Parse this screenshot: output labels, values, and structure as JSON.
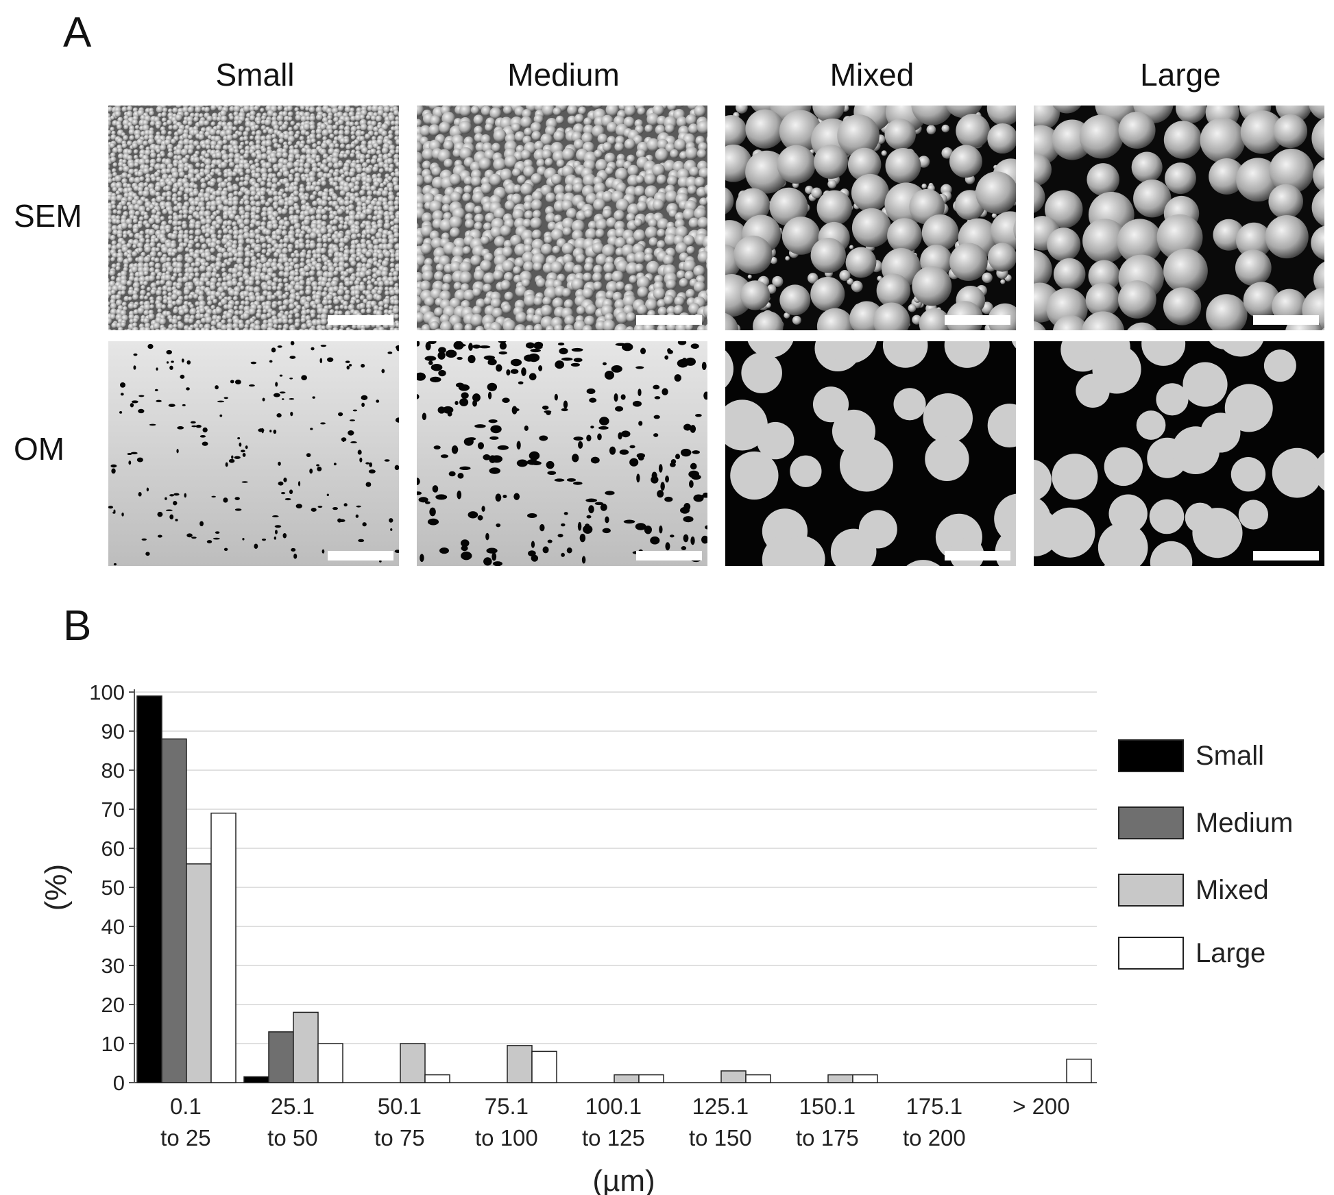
{
  "panel_a": {
    "label": "A",
    "columns": [
      "Small",
      "Medium",
      "Mixed",
      "Large"
    ],
    "rows": [
      "SEM",
      "OM"
    ]
  },
  "panel_b": {
    "label": "B"
  },
  "chart_data": {
    "type": "bar",
    "categories": [
      [
        "0.1",
        "to 25"
      ],
      [
        "25.1",
        "to 50"
      ],
      [
        "50.1",
        "to 75"
      ],
      [
        "75.1",
        "to 100"
      ],
      [
        "100.1",
        "to 125"
      ],
      [
        "125.1",
        "to 150"
      ],
      [
        "150.1",
        "to 175"
      ],
      [
        "175.1",
        "to 200"
      ],
      [
        "> 200"
      ]
    ],
    "series": [
      {
        "name": "Small",
        "color": "#000000",
        "values": [
          99,
          1.5,
          0,
          0,
          0,
          0,
          0,
          0,
          0
        ]
      },
      {
        "name": "Medium",
        "color": "#6f6f6f",
        "values": [
          88,
          13,
          0,
          0,
          0,
          0,
          0,
          0,
          0
        ]
      },
      {
        "name": "Mixed",
        "color": "#c8c8c8",
        "values": [
          56,
          18,
          10,
          9.5,
          2,
          3,
          2,
          0,
          0
        ]
      },
      {
        "name": "Large",
        "color": "#ffffff",
        "values": [
          69,
          10,
          2,
          8,
          2,
          2,
          2,
          0,
          6
        ]
      }
    ],
    "xlabel": "(µm)",
    "ylabel": "(%)",
    "ylim": [
      0,
      100
    ],
    "yticks": [
      0,
      10,
      20,
      30,
      40,
      50,
      60,
      70,
      80,
      90,
      100
    ],
    "grid": true,
    "legend": "right"
  }
}
